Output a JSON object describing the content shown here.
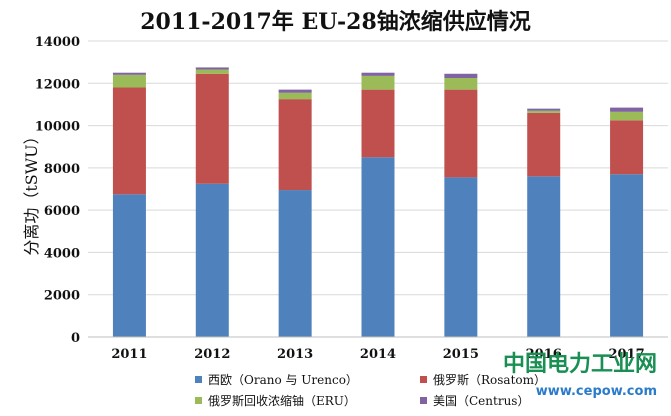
{
  "chart_data": {
    "type": "bar",
    "stacked": true,
    "title": "2011-2017年 EU-28铀浓缩供应情况",
    "xlabel": "",
    "ylabel": "分离功（tSWU）",
    "categories": [
      "2011",
      "2012",
      "2013",
      "2014",
      "2015",
      "2016",
      "2017"
    ],
    "yticks": [
      0,
      2000,
      4000,
      6000,
      8000,
      10000,
      12000,
      14000
    ],
    "ylim": [
      0,
      14000
    ],
    "grid": true,
    "legend_position": "bottom",
    "series": [
      {
        "name": "西欧（Orano 与 Urenco）",
        "color": "#4f81bd",
        "values": [
          6750,
          7250,
          6950,
          8500,
          7550,
          7600,
          7700
        ]
      },
      {
        "name": "俄罗斯（Rosatom）",
        "color": "#c0504d",
        "values": [
          5050,
          5200,
          4300,
          3200,
          4150,
          3000,
          2550
        ]
      },
      {
        "name": "俄罗斯回收浓缩铀（ERU）",
        "color": "#9bbb59",
        "values": [
          600,
          200,
          300,
          650,
          550,
          100,
          400
        ]
      },
      {
        "name": "美国（Centrus）",
        "color": "#8064a2",
        "values": [
          100,
          100,
          150,
          150,
          200,
          100,
          200
        ]
      }
    ]
  },
  "watermark": {
    "main": "中国电力工业网",
    "sub": "www.cepow.com"
  }
}
